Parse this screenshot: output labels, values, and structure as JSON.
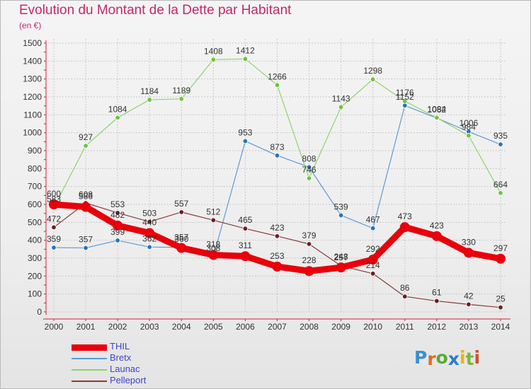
{
  "header": {
    "title": "Evolution du Montant de la Dette par Habitant",
    "subtitle": "(en €)"
  },
  "logo": {
    "text": "Proxiti",
    "colors": [
      "#3a8fd0",
      "#e36a1f",
      "#5aa93b",
      "#2b7fc6",
      "#e8b317",
      "#7ab83c",
      "#d64b2a"
    ]
  },
  "chart_data": {
    "type": "line",
    "title": "Evolution du Montant de la Dette par Habitant",
    "subtitle": "(en €)",
    "categories": [
      "2000",
      "2001",
      "2002",
      "2003",
      "2004",
      "2005",
      "2006",
      "2007",
      "2008",
      "2009",
      "2010",
      "2011",
      "2012",
      "2013",
      "2014"
    ],
    "ylim": [
      0,
      1500
    ],
    "yticks": [
      0,
      100,
      200,
      300,
      400,
      500,
      600,
      700,
      800,
      900,
      1000,
      1100,
      1200,
      1300,
      1400,
      1500
    ],
    "grid": true,
    "legend_position": "bottom-left",
    "series": [
      {
        "name": "THIL",
        "color": "#e8000b",
        "marker": "#e8000b",
        "width": 9,
        "values": [
          600,
          586,
          482,
          440,
          357,
          318,
          311,
          253,
          228,
          248,
          292,
          473,
          423,
          330,
          297
        ]
      },
      {
        "name": "Bretx",
        "color": "#5b9bd5",
        "marker": "#2a73b8",
        "width": 1.2,
        "values": [
          359,
          357,
          399,
          362,
          360,
          308,
          953,
          873,
          808,
          539,
          467,
          1152,
          1082,
          1006,
          935
        ]
      },
      {
        "name": "Launac",
        "color": "#8fd36b",
        "marker": "#6fc23f",
        "width": 1.2,
        "values": [
          583,
          927,
          1084,
          1184,
          1189,
          1408,
          1412,
          1266,
          746,
          1143,
          1298,
          1176,
          1084,
          984,
          664
        ]
      },
      {
        "name": "Pelleport",
        "color": "#8b3a3a",
        "marker": "#6b1f1f",
        "width": 1.2,
        "values": [
          472,
          608,
          553,
          503,
          557,
          512,
          465,
          423,
          379,
          257,
          214,
          86,
          61,
          42,
          25
        ]
      }
    ]
  }
}
